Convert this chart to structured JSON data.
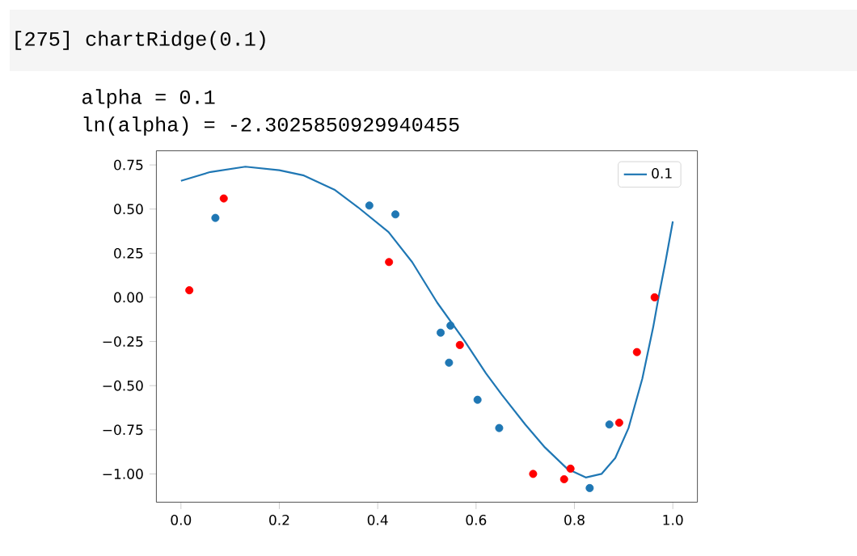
{
  "chart_data": {
    "type": "scatter",
    "annotations": [
      "[275] chartRidge(0.1)",
      "alpha =  0.1",
      "ln(alpha) =  -2.3025850929940455"
    ],
    "xlim": [
      -0.05,
      1.05
    ],
    "ylim": [
      -1.16,
      0.83
    ],
    "xticks": [
      {
        "value": 0,
        "label": "0.0"
      },
      {
        "value": 0.2,
        "label": "0.2"
      },
      {
        "value": 0.4,
        "label": "0.4"
      },
      {
        "value": 0.6,
        "label": "0.6"
      },
      {
        "value": 0.8,
        "label": "0.8"
      },
      {
        "value": 1,
        "label": "1.0"
      }
    ],
    "yticks": [
      {
        "value": -1,
        "label": "−1.00"
      },
      {
        "value": -0.75,
        "label": "−0.75"
      },
      {
        "value": -0.5,
        "label": "−0.50"
      },
      {
        "value": -0.25,
        "label": "−0.25"
      },
      {
        "value": 0,
        "label": "0.00"
      },
      {
        "value": 0.25,
        "label": "0.25"
      },
      {
        "value": 0.5,
        "label": "0.50"
      },
      {
        "value": 0.75,
        "label": "0.75"
      }
    ],
    "legend": "top right",
    "marker": "circle",
    "series": [
      {
        "color": "#1f77b4",
        "x": [
          0.07,
          0.383,
          0.436,
          0.528,
          0.548,
          0.545,
          0.603,
          0.647,
          0.831,
          0.871
        ],
        "values": [
          0.45,
          0.52,
          0.47,
          -0.2,
          -0.16,
          -0.37,
          -0.58,
          -0.74,
          -1.08,
          -0.72
        ]
      },
      {
        "color": "#ff0000",
        "x": [
          0.017,
          0.087,
          0.423,
          0.567,
          0.716,
          0.779,
          0.792,
          0.891,
          0.927,
          0.963
        ],
        "values": [
          0.04,
          0.56,
          0.2,
          -0.27,
          -1.0,
          -1.03,
          -0.97,
          -0.71,
          -0.31,
          0.0
        ]
      },
      {
        "type": "line",
        "name": "0.1",
        "color": "#1f77b4",
        "marker": "none",
        "x": [
          0.0,
          0.06,
          0.131,
          0.2,
          0.25,
          0.312,
          0.36,
          0.422,
          0.47,
          0.521,
          0.575,
          0.62,
          0.652,
          0.7,
          0.74,
          0.785,
          0.823,
          0.855,
          0.883,
          0.91,
          0.938,
          0.96,
          0.971,
          0.985,
          1.0
        ],
        "values": [
          0.66,
          0.71,
          0.74,
          0.72,
          0.69,
          0.61,
          0.51,
          0.37,
          0.2,
          -0.03,
          -0.24,
          -0.43,
          -0.55,
          -0.72,
          -0.85,
          -0.97,
          -1.02,
          -1.0,
          -0.91,
          -0.74,
          -0.46,
          -0.17,
          0.0,
          0.2,
          0.43
        ]
      }
    ]
  }
}
